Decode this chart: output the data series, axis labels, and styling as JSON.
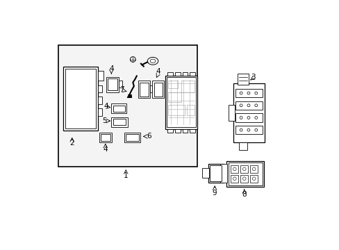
{
  "bg_color": "#ffffff",
  "box_fill": "#f0f0f0",
  "lc": "#000000",
  "gray": "#888888",
  "light_gray": "#cccccc",
  "white": "#ffffff"
}
